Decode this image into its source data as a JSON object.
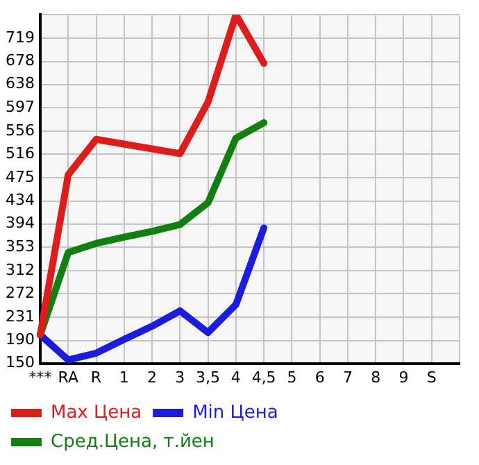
{
  "chart_data": {
    "type": "line",
    "categories": [
      "***",
      "RA",
      "R",
      "1",
      "2",
      "3",
      "3,5",
      "4",
      "4,5",
      "5",
      "6",
      "7",
      "8",
      "9",
      "S",
      null
    ],
    "series": [
      {
        "name": "Max Цена",
        "color": "#dd1c1c",
        "values": [
          200,
          480,
          542,
          null,
          null,
          517,
          607,
          760,
          675,
          null,
          null,
          null,
          null,
          null,
          null,
          null
        ]
      },
      {
        "name": "Min Цена",
        "color": "#1c1cdd",
        "values": [
          200,
          156,
          168,
          192,
          215,
          242,
          204,
          253,
          387,
          null,
          null,
          null,
          null,
          null,
          null,
          null
        ]
      },
      {
        "name": "Сред.Цена, т.йен",
        "color": "#118011",
        "values": [
          200,
          344,
          360,
          371,
          381,
          393,
          431,
          544,
          571,
          null,
          null,
          null,
          null,
          null,
          null,
          null
        ]
      }
    ],
    "ylim": [
      150,
      760
    ],
    "yticks": [
      150,
      190,
      231,
      272,
      312,
      353,
      394,
      434,
      475,
      516,
      556,
      597,
      638,
      678,
      719,
      {
        "value": 760,
        "label": null
      }
    ],
    "grid": true,
    "legend": "bottom",
    "marker": "none",
    "line_style": "solid"
  }
}
